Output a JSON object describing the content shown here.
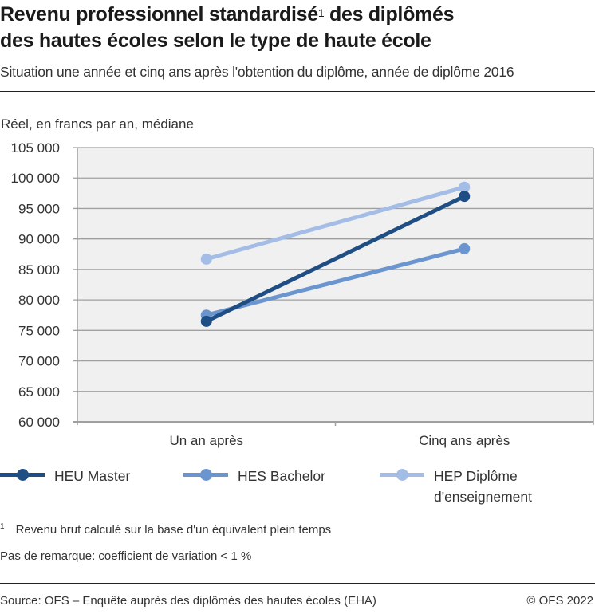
{
  "header": {
    "title_part1": "Revenu professionnel standardisé",
    "title_sup": "1",
    "title_part2": " des diplômés",
    "title_line2": "des hautes écoles selon le type de haute école",
    "subtitle": "Situation une année et cinq ans après l'obtention du diplôme, année de diplôme 2016"
  },
  "axis": {
    "unit_label": "Réel, en francs par an, médiane",
    "y_ticks": [
      "105 000",
      "100 000",
      "95 000",
      "90 000",
      "85 000",
      "80 000",
      "75 000",
      "70 000",
      "65 000",
      "60 000"
    ],
    "x_ticks": [
      "Un an après",
      "Cinq ans après"
    ]
  },
  "legend": [
    {
      "label": "HEU Master",
      "color": "#1f4e85"
    },
    {
      "label": "HES Bachelor",
      "color": "#6b95cf"
    },
    {
      "label": "HEP Diplôme d'enseignement",
      "label_line1": "HEP Diplôme",
      "label_line2": "d'enseignement",
      "color": "#a3bde6"
    }
  ],
  "footnotes": {
    "note1_marker": "1",
    "note1": "Revenu brut calculé sur la base d'un équivalent plein temps",
    "note2": "Pas de remarque: coefficient de variation < 1 %"
  },
  "footer": {
    "source": "Source: OFS – Enquête auprès des diplômés des hautes écoles (EHA)",
    "copyright": "© OFS 2022"
  },
  "chart_data": {
    "type": "line",
    "title": "Revenu professionnel standardisé des diplômés des hautes écoles selon le type de haute école",
    "subtitle": "Situation une année et cinq ans après l'obtention du diplôme, année de diplôme 2016",
    "xlabel": "",
    "ylabel": "Réel, en francs par an, médiane",
    "categories": [
      "Un an après",
      "Cinq ans après"
    ],
    "series": [
      {
        "name": "HEU Master",
        "color": "#1f4e85",
        "values": [
          76500,
          97000
        ]
      },
      {
        "name": "HES Bachelor",
        "color": "#6b95cf",
        "values": [
          77500,
          88400
        ]
      },
      {
        "name": "HEP Diplôme d'enseignement",
        "color": "#a3bde6",
        "values": [
          86700,
          98500
        ]
      }
    ],
    "ylim": [
      60000,
      105000
    ],
    "y_tick_step": 5000,
    "grid": true,
    "legend_position": "bottom"
  }
}
